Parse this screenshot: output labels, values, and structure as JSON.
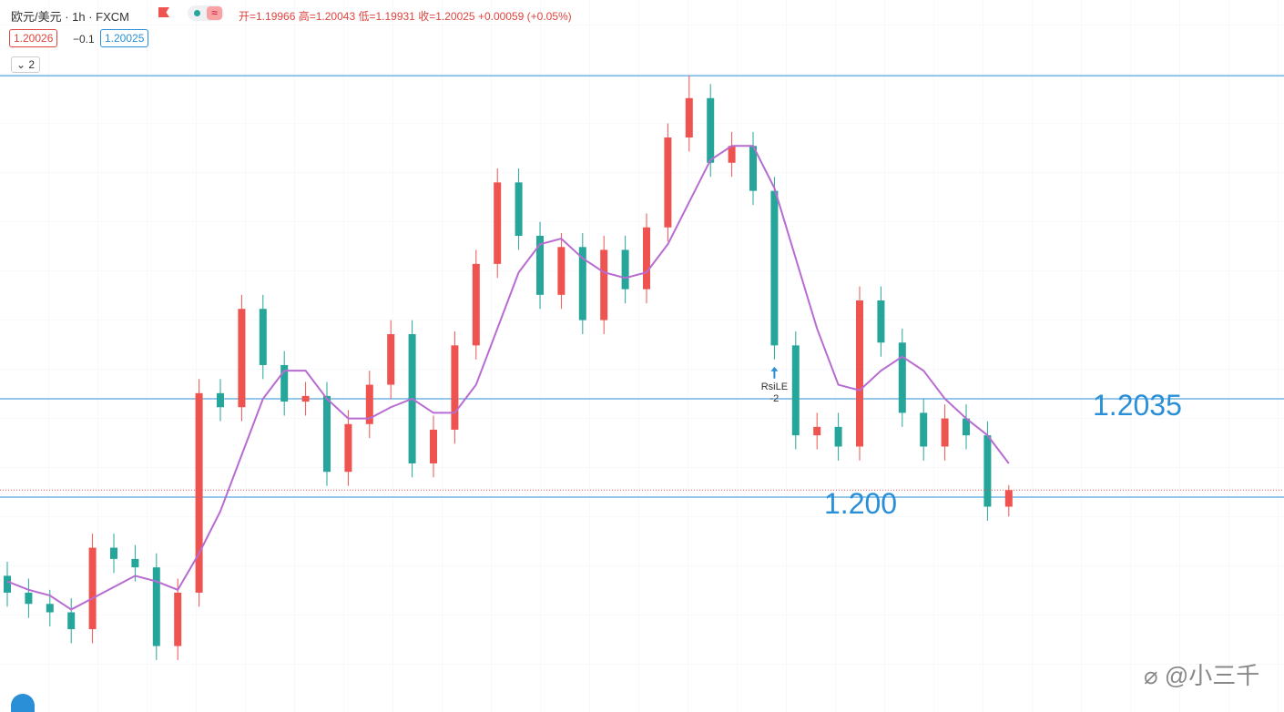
{
  "header": {
    "symbol": "欧元/美元 · 1h · FXCM",
    "open": "开=1.19966",
    "high": "高=1.20043",
    "low": "低=1.19931",
    "close": "收=1.20025",
    "change": "+0.00059 (+0.05%)",
    "bid": "1.20026",
    "spread": "−0.1",
    "ask": "1.20025",
    "indicator_count": "2"
  },
  "chart_data": {
    "type": "candlestick",
    "candles": {
      "open": [
        1.1972,
        1.1966,
        1.1962,
        1.1959,
        1.1953,
        1.1982,
        1.1978,
        1.1975,
        1.1947,
        1.1966,
        1.2037,
        1.2032,
        1.2067,
        1.2047,
        1.2034,
        1.2036,
        1.2009,
        1.2026,
        1.204,
        1.2058,
        1.2012,
        1.2024,
        1.2054,
        1.2083,
        1.2112,
        1.2093,
        1.2072,
        1.2089,
        1.2063,
        1.2088,
        1.2074,
        1.2096,
        1.2128,
        1.2142,
        1.2119,
        1.2125,
        1.2109,
        1.2054,
        1.2022,
        1.2025,
        1.2018,
        1.207,
        1.2055,
        1.203,
        1.2018,
        1.2028,
        1.2022,
        1.19966
      ],
      "high": [
        1.1977,
        1.1971,
        1.1967,
        1.1964,
        1.1987,
        1.1987,
        1.1983,
        1.198,
        1.1971,
        1.2042,
        1.2042,
        1.2072,
        1.2072,
        1.2052,
        1.2041,
        1.2041,
        1.2031,
        1.2045,
        1.2063,
        1.2063,
        1.2029,
        1.2059,
        1.2088,
        1.2117,
        1.2117,
        1.2098,
        1.2094,
        1.2094,
        1.2093,
        1.2093,
        1.2101,
        1.2133,
        1.215,
        1.2147,
        1.213,
        1.213,
        1.2114,
        1.2059,
        1.203,
        1.203,
        1.2075,
        1.2075,
        1.206,
        1.2035,
        1.2033,
        1.2033,
        1.2027,
        1.20043
      ],
      "low": [
        1.1961,
        1.1957,
        1.1954,
        1.1948,
        1.1948,
        1.1973,
        1.197,
        1.1942,
        1.1942,
        1.1961,
        1.2027,
        1.2027,
        1.2042,
        1.2029,
        1.2029,
        1.2004,
        1.2004,
        1.2021,
        1.2035,
        1.2007,
        1.2007,
        1.2019,
        1.2049,
        1.2078,
        1.2088,
        1.2067,
        1.2067,
        1.2058,
        1.2058,
        1.2069,
        1.2069,
        1.2091,
        1.2123,
        1.2114,
        1.2114,
        1.2104,
        1.2049,
        1.2017,
        1.2017,
        1.2013,
        1.2013,
        1.205,
        1.2025,
        1.2013,
        1.2013,
        1.2017,
        1.19916,
        1.19931
      ],
      "close": [
        1.1966,
        1.1962,
        1.1959,
        1.1953,
        1.1982,
        1.1978,
        1.1975,
        1.1947,
        1.1966,
        1.2037,
        1.2032,
        1.2067,
        1.2047,
        1.2034,
        1.2036,
        1.2009,
        1.2026,
        1.204,
        1.2058,
        1.2012,
        1.2024,
        1.2054,
        1.2083,
        1.2112,
        1.2093,
        1.2072,
        1.2089,
        1.2063,
        1.2088,
        1.2074,
        1.2096,
        1.2128,
        1.2142,
        1.2119,
        1.2125,
        1.2109,
        1.2054,
        1.2022,
        1.2025,
        1.2018,
        1.207,
        1.2055,
        1.203,
        1.2018,
        1.2028,
        1.2022,
        1.19966,
        1.20025
      ]
    },
    "up_color": "#ef5350",
    "down_color": "#26a69a",
    "ma": {
      "color": "#b86bd0",
      "values": [
        1.197,
        1.1967,
        1.1965,
        1.196,
        1.1964,
        1.1968,
        1.1972,
        1.197,
        1.1967,
        1.198,
        1.1995,
        1.2015,
        1.2035,
        1.2045,
        1.2045,
        1.2035,
        1.2028,
        1.2028,
        1.2032,
        1.2035,
        1.203,
        1.203,
        1.204,
        1.206,
        1.208,
        1.209,
        1.2092,
        1.2085,
        1.208,
        1.2078,
        1.208,
        1.209,
        1.2105,
        1.212,
        1.2125,
        1.2125,
        1.211,
        1.2085,
        1.206,
        1.204,
        1.2038,
        1.2045,
        1.205,
        1.2045,
        1.2035,
        1.2028,
        1.2022,
        1.2012
      ]
    },
    "levels": [
      {
        "value": 1.215
      },
      {
        "value": 1.2035,
        "label": "1.2035"
      },
      {
        "value": 1.2,
        "label": "1.200"
      }
    ],
    "level_color": "#2a8fd6",
    "signal": {
      "index": 36,
      "name": "RsiLE",
      "qty": "-2"
    }
  },
  "watermark": "@小三千"
}
